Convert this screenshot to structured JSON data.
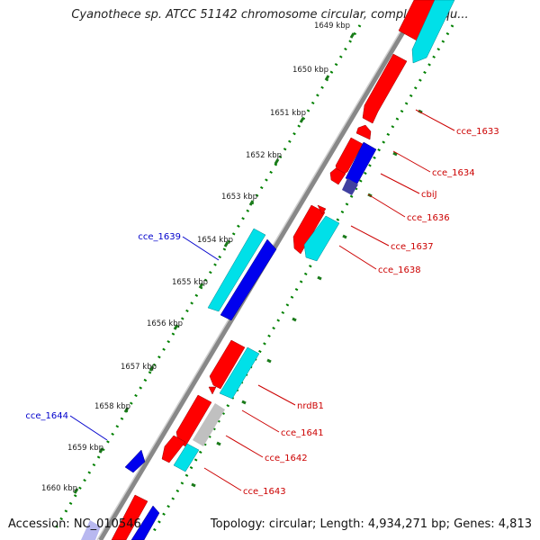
{
  "title": "Cyanothece sp. ATCC 51142 chromosome circular, complete sequ...",
  "footer": {
    "accession": "Accession: NC_010546",
    "summary": "Topology: circular; Length: 4,934,271 bp; Genes: 4,813"
  },
  "colors": {
    "forward_cds": "#ff0000",
    "reverse_cds": "#00e0e8",
    "reverse_blue": "#0000ee",
    "pseudo_gene": "#c0c0c0",
    "dark_gene": "#4040a0",
    "backbone": "#888888",
    "tick_dots": "#008000",
    "label_forward": "#cc0000",
    "label_reverse": "#0000cc"
  },
  "ticks": [
    "1649 kbp",
    "1650 kbp",
    "1651 kbp",
    "1652 kbp",
    "1653 kbp",
    "1654 kbp",
    "1655 kbp",
    "1656 kbp",
    "1657 kbp",
    "1658 kbp",
    "1659 kbp",
    "1660 kbp"
  ],
  "gene_labels_right": [
    "cce_1633",
    "cce_1634",
    "cbiJ",
    "cce_1636",
    "cce_1637",
    "cce_1638",
    "nrdB1",
    "cce_1641",
    "cce_1642",
    "cce_1643"
  ],
  "gene_labels_left": [
    "cce_1639",
    "cce_1644"
  ]
}
